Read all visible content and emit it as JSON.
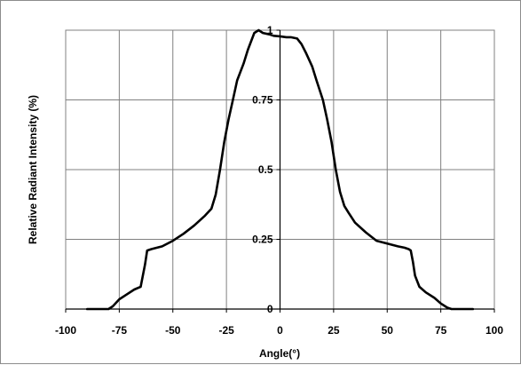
{
  "chart_data": {
    "type": "line",
    "title": "",
    "xlabel": "Angle(°)",
    "ylabel": "Relative Radiant Intensity (%)",
    "xlim": [
      -100,
      100
    ],
    "ylim": [
      0,
      1
    ],
    "x_ticks": [
      -100,
      -75,
      -50,
      -25,
      0,
      25,
      50,
      75,
      100
    ],
    "x_tick_labels": [
      "-100",
      "-75",
      "-50",
      "-25",
      "0",
      "25",
      "50",
      "75",
      "100"
    ],
    "y_ticks": [
      0,
      0.25,
      0.5,
      0.75,
      1
    ],
    "y_tick_labels": [
      "0",
      "0.25",
      "0.5",
      "0.75",
      "1"
    ],
    "grid": true,
    "legend": "none",
    "line_color": "#000000",
    "grid_color": "#808080",
    "series": [
      {
        "x": [
          -90,
          -80,
          -78,
          -75,
          -72,
          -68,
          -65,
          -63,
          -62,
          -60,
          -55,
          -50,
          -45,
          -40,
          -35,
          -32,
          -30,
          -28,
          -26,
          -24,
          -22,
          -20,
          -17,
          -15,
          -12,
          -10,
          -8,
          -5,
          -3,
          0,
          3,
          5,
          8,
          10,
          12,
          15,
          17,
          20,
          22,
          24,
          26,
          28,
          30,
          32,
          35,
          40,
          45,
          50,
          55,
          58,
          60,
          61,
          62,
          63,
          65,
          68,
          72,
          75,
          78,
          80,
          90
        ],
        "y": [
          0,
          0,
          0.01,
          0.035,
          0.05,
          0.07,
          0.08,
          0.16,
          0.21,
          0.215,
          0.225,
          0.245,
          0.27,
          0.3,
          0.335,
          0.36,
          0.41,
          0.5,
          0.6,
          0.68,
          0.75,
          0.82,
          0.88,
          0.93,
          0.99,
          1.0,
          0.99,
          0.985,
          0.98,
          0.978,
          0.975,
          0.975,
          0.97,
          0.95,
          0.92,
          0.87,
          0.82,
          0.75,
          0.68,
          0.6,
          0.5,
          0.42,
          0.37,
          0.345,
          0.31,
          0.275,
          0.245,
          0.235,
          0.225,
          0.22,
          0.215,
          0.21,
          0.17,
          0.12,
          0.08,
          0.06,
          0.04,
          0.02,
          0.005,
          0,
          0
        ]
      }
    ]
  }
}
